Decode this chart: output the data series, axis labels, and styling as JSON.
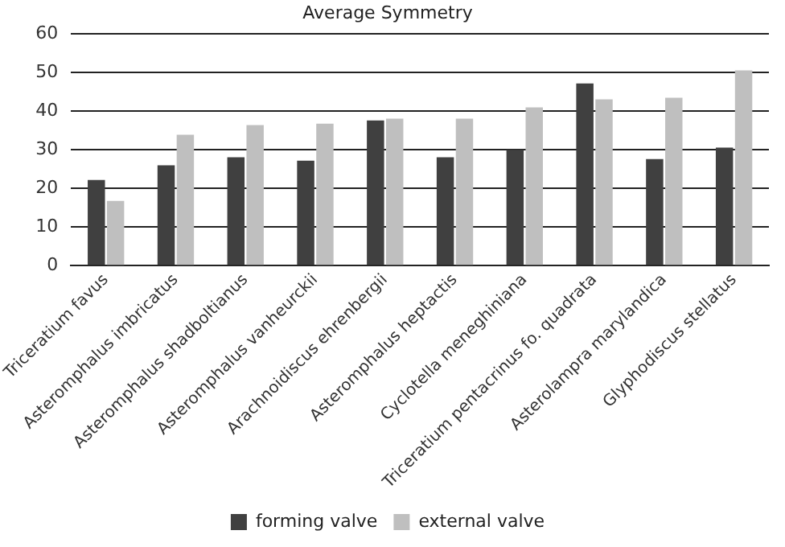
{
  "chart_data": {
    "type": "bar",
    "title": "Average Symmetry",
    "categories": [
      "Triceratium favus",
      "Asteromphalus imbricatus",
      "Asteromphalus shadboltianus",
      "Asteromphalus vanheurckii",
      "Arachnoidiscus ehrenbergii",
      "Asteromphalus heptactis",
      "Cyclotella meneghiniana",
      "Triceratium pentacrinus fo. quadrata",
      "Asterolampra marylandica",
      "Glyphodiscus stellatus"
    ],
    "series": [
      {
        "name": "forming valve",
        "color": "#404040",
        "values": [
          22.2,
          26.0,
          28.1,
          27.2,
          37.6,
          28.1,
          30.0,
          47.2,
          27.6,
          30.6
        ]
      },
      {
        "name": "external valve",
        "color": "#bfbfbf",
        "values": [
          16.8,
          33.9,
          36.4,
          36.8,
          38.1,
          38.1,
          41.0,
          43.1,
          43.5,
          50.6
        ]
      }
    ],
    "ylim": [
      0,
      60
    ],
    "yticks": [
      0,
      10,
      20,
      30,
      40,
      50,
      60
    ],
    "grid": "y",
    "legend": "bottom"
  }
}
